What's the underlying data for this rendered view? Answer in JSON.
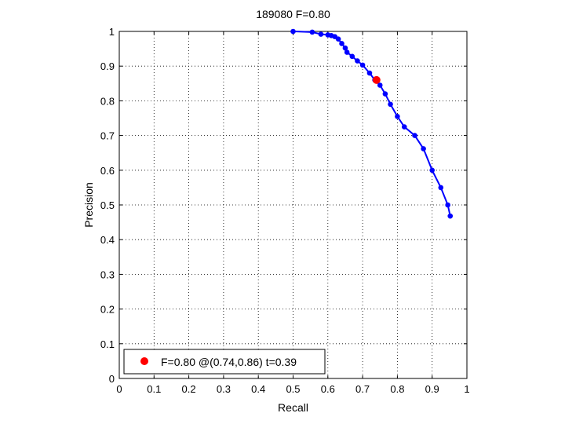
{
  "chart_data": {
    "type": "line",
    "title": "189080 F=0.80",
    "xlabel": "Recall",
    "ylabel": "Precision",
    "xlim": [
      0,
      1
    ],
    "ylim": [
      0,
      1
    ],
    "xticks": [
      0,
      0.1,
      0.2,
      0.3,
      0.4,
      0.5,
      0.6,
      0.7,
      0.8,
      0.9,
      1
    ],
    "yticks": [
      0,
      0.1,
      0.2,
      0.3,
      0.4,
      0.5,
      0.6,
      0.7,
      0.8,
      0.9,
      1
    ],
    "xtick_labels": [
      "0",
      "0.1",
      "0.2",
      "0.3",
      "0.4",
      "0.5",
      "0.6",
      "0.7",
      "0.8",
      "0.9",
      "1"
    ],
    "ytick_labels": [
      "0",
      "0.1",
      "0.2",
      "0.3",
      "0.4",
      "0.5",
      "0.6",
      "0.7",
      "0.8",
      "0.9",
      "1"
    ],
    "grid": true,
    "legend_position": "bottom-left",
    "series": [
      {
        "color": "#0000ff",
        "points": [
          [
            0.5,
            1.0
          ],
          [
            0.555,
            0.998
          ],
          [
            0.58,
            0.992
          ],
          [
            0.6,
            0.99
          ],
          [
            0.61,
            0.988
          ],
          [
            0.62,
            0.985
          ],
          [
            0.63,
            0.978
          ],
          [
            0.64,
            0.965
          ],
          [
            0.65,
            0.952
          ],
          [
            0.655,
            0.94
          ],
          [
            0.67,
            0.928
          ],
          [
            0.685,
            0.915
          ],
          [
            0.7,
            0.903
          ],
          [
            0.72,
            0.88
          ],
          [
            0.735,
            0.86
          ],
          [
            0.75,
            0.845
          ],
          [
            0.765,
            0.82
          ],
          [
            0.78,
            0.79
          ],
          [
            0.8,
            0.755
          ],
          [
            0.82,
            0.725
          ],
          [
            0.85,
            0.7
          ],
          [
            0.875,
            0.662
          ],
          [
            0.9,
            0.6
          ],
          [
            0.925,
            0.55
          ],
          [
            0.945,
            0.5
          ],
          [
            0.952,
            0.468
          ]
        ]
      }
    ],
    "highlight": {
      "color": "#ff0000",
      "x": 0.74,
      "y": 0.86,
      "legend_label": "F=0.80 @(0.74,0.86) t=0.39"
    }
  }
}
